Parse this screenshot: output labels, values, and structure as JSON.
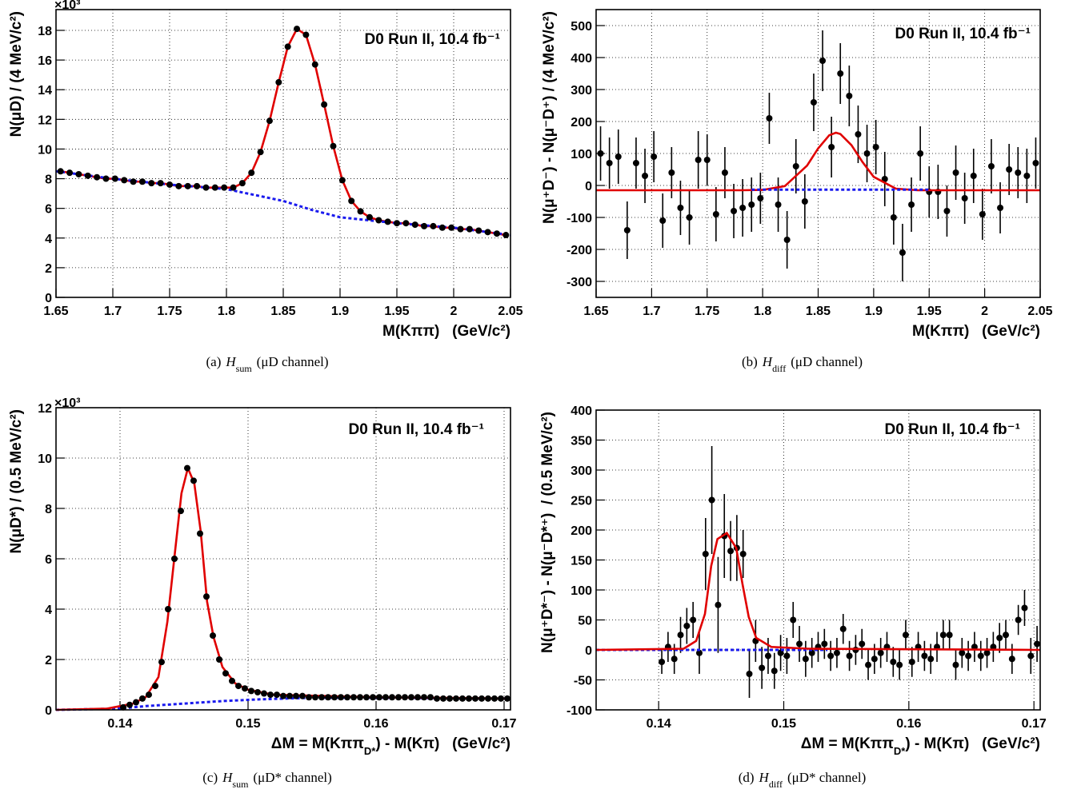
{
  "chart_data": [
    {
      "type": "scatter",
      "grid": true,
      "xlim": [
        1.65,
        2.05
      ],
      "ylim": [
        0,
        19.4
      ],
      "xticks": [
        1.65,
        1.7,
        1.75,
        1.8,
        1.85,
        1.9,
        1.95,
        2,
        2.05
      ],
      "yticks": [
        0,
        2,
        4,
        6,
        8,
        10,
        12,
        14,
        16,
        18
      ],
      "multiplier": "×10³",
      "xlabel": "M(Kππ)   (GeV/c²)",
      "ylabel": "N(μD) / (4 MeV/c²)",
      "annotation": "D0 Run II, 10.4 fb⁻¹",
      "caption": {
        "label": "(a)",
        "symbol": "H",
        "subscript": "sum",
        "text": "(μD channel)"
      },
      "series": [
        {
          "type": "line",
          "color": "#e00000",
          "dash": false,
          "x": [
            1.654,
            1.662,
            1.67,
            1.678,
            1.686,
            1.694,
            1.702,
            1.71,
            1.718,
            1.726,
            1.734,
            1.742,
            1.75,
            1.758,
            1.766,
            1.774,
            1.782,
            1.79,
            1.798,
            1.806,
            1.814,
            1.822,
            1.83,
            1.838,
            1.846,
            1.854,
            1.862,
            1.87,
            1.878,
            1.886,
            1.894,
            1.902,
            1.91,
            1.918,
            1.926,
            1.934,
            1.942,
            1.95,
            1.958,
            1.966,
            1.974,
            1.982,
            1.99,
            1.998,
            2.006,
            2.014,
            2.022,
            2.03,
            2.038,
            2.046
          ],
          "values": [
            8.5,
            8.4,
            8.3,
            8.2,
            8.1,
            8.0,
            8.0,
            7.9,
            7.8,
            7.8,
            7.7,
            7.7,
            7.6,
            7.5,
            7.5,
            7.5,
            7.4,
            7.4,
            7.4,
            7.4,
            7.7,
            8.4,
            9.8,
            11.9,
            14.5,
            16.9,
            18.1,
            17.7,
            15.7,
            13.0,
            10.2,
            7.9,
            6.5,
            5.8,
            5.4,
            5.2,
            5.1,
            5.0,
            5.0,
            4.9,
            4.8,
            4.8,
            4.7,
            4.7,
            4.6,
            4.6,
            4.5,
            4.4,
            4.3,
            4.2
          ]
        },
        {
          "type": "line",
          "color": "#1a1aee",
          "dash": true,
          "x": [
            1.65,
            1.7,
            1.75,
            1.8,
            1.85,
            1.875,
            1.9,
            1.95,
            2.0,
            2.05
          ],
          "values": [
            8.5,
            8.0,
            7.6,
            7.3,
            6.5,
            5.9,
            5.4,
            5.0,
            4.7,
            4.2
          ]
        },
        {
          "type": "scatter",
          "color": "#000000",
          "x": [
            1.654,
            1.662,
            1.67,
            1.678,
            1.686,
            1.694,
            1.702,
            1.71,
            1.718,
            1.726,
            1.734,
            1.742,
            1.75,
            1.758,
            1.766,
            1.774,
            1.782,
            1.79,
            1.798,
            1.806,
            1.814,
            1.822,
            1.83,
            1.838,
            1.846,
            1.854,
            1.862,
            1.87,
            1.878,
            1.886,
            1.894,
            1.902,
            1.91,
            1.918,
            1.926,
            1.934,
            1.942,
            1.95,
            1.958,
            1.966,
            1.974,
            1.982,
            1.99,
            1.998,
            2.006,
            2.014,
            2.022,
            2.03,
            2.038,
            2.046
          ],
          "values": [
            8.5,
            8.4,
            8.3,
            8.2,
            8.1,
            8.0,
            8.0,
            7.9,
            7.8,
            7.8,
            7.7,
            7.7,
            7.6,
            7.5,
            7.5,
            7.5,
            7.4,
            7.4,
            7.4,
            7.4,
            7.7,
            8.4,
            9.8,
            11.9,
            14.5,
            16.9,
            18.1,
            17.7,
            15.7,
            13.0,
            10.2,
            7.9,
            6.5,
            5.8,
            5.4,
            5.2,
            5.1,
            5.0,
            5.0,
            4.9,
            4.8,
            4.8,
            4.7,
            4.7,
            4.6,
            4.6,
            4.5,
            4.4,
            4.3,
            4.2
          ]
        }
      ]
    },
    {
      "type": "scatter",
      "grid": true,
      "xlim": [
        1.65,
        2.05
      ],
      "ylim": [
        -350,
        550
      ],
      "xticks": [
        1.65,
        1.7,
        1.75,
        1.8,
        1.85,
        1.9,
        1.95,
        2,
        2.05
      ],
      "yticks": [
        -300,
        -200,
        -100,
        0,
        100,
        200,
        300,
        400,
        500
      ],
      "xlabel": "M(Kππ)   (GeV/c²)",
      "ylabel": "N(μ⁺D⁻) - N(μ⁻D⁺) / (4 MeV/c²)",
      "annotation": "D0 Run II, 10.4 fb⁻¹",
      "caption": {
        "label": "(b)",
        "symbol": "H",
        "subscript": "diff",
        "text": "(μD channel)"
      },
      "series": [
        {
          "type": "scatter",
          "color": "#000000",
          "x": [
            1.654,
            1.662,
            1.67,
            1.678,
            1.686,
            1.694,
            1.702,
            1.71,
            1.718,
            1.726,
            1.734,
            1.742,
            1.75,
            1.758,
            1.766,
            1.774,
            1.782,
            1.79,
            1.798,
            1.806,
            1.814,
            1.822,
            1.83,
            1.838,
            1.846,
            1.854,
            1.862,
            1.87,
            1.878,
            1.886,
            1.894,
            1.902,
            1.91,
            1.918,
            1.926,
            1.934,
            1.942,
            1.95,
            1.958,
            1.966,
            1.974,
            1.982,
            1.99,
            1.998,
            2.006,
            2.014,
            2.022,
            2.03,
            2.038,
            2.046
          ],
          "values": [
            100,
            70,
            90,
            -140,
            70,
            30,
            90,
            -110,
            40,
            -70,
            -100,
            80,
            80,
            -90,
            40,
            -80,
            -70,
            -60,
            -40,
            210,
            -60,
            -170,
            60,
            -50,
            260,
            390,
            120,
            350,
            280,
            160,
            100,
            120,
            20,
            -100,
            -210,
            -60,
            100,
            -20,
            -20,
            -80,
            40,
            -40,
            30,
            -90,
            60,
            -70,
            50,
            40,
            30,
            70
          ],
          "errors": [
            85,
            80,
            85,
            90,
            80,
            85,
            80,
            85,
            80,
            85,
            85,
            90,
            80,
            85,
            80,
            85,
            90,
            85,
            80,
            80,
            85,
            90,
            85,
            85,
            90,
            95,
            95,
            95,
            95,
            90,
            90,
            85,
            85,
            85,
            90,
            85,
            85,
            80,
            85,
            80,
            85,
            80,
            85,
            80,
            85,
            80,
            80,
            80,
            85,
            80
          ]
        },
        {
          "type": "line",
          "color": "#e00000",
          "dash": false,
          "x": [
            1.65,
            1.78,
            1.8,
            1.82,
            1.84,
            1.85,
            1.86,
            1.866,
            1.87,
            1.88,
            1.89,
            1.9,
            1.92,
            1.94,
            2.05
          ],
          "values": [
            -15,
            -15,
            -14,
            -2,
            62,
            116,
            157,
            165,
            161,
            126,
            73,
            27,
            -10,
            -15,
            -15
          ]
        },
        {
          "type": "line",
          "color": "#1a1aee",
          "dash": true,
          "x": [
            1.79,
            1.95
          ],
          "values": [
            -13,
            -13
          ]
        }
      ]
    },
    {
      "type": "scatter",
      "grid": true,
      "xlim": [
        0.135,
        0.1705
      ],
      "ylim": [
        0,
        12
      ],
      "xticks": [
        0.14,
        0.15,
        0.16,
        0.17
      ],
      "yticks": [
        0,
        2,
        4,
        6,
        8,
        10,
        12
      ],
      "multiplier": "×10³",
      "xlabel": [
        "ΔM = M(Kππ",
        "D*",
        ") - M(Kπ)   (GeV/c²)"
      ],
      "ylabel": "N(μD*) / (0.5 MeV/c²)",
      "annotation": "D0 Run II, 10.4 fb⁻¹",
      "caption": {
        "label": "(c)",
        "symbol": "H",
        "subscript": "sum",
        "text": "(μD* channel)"
      },
      "series": [
        {
          "type": "line",
          "color": "#1a1aee",
          "dash": true,
          "x": [
            0.135,
            0.14,
            0.142,
            0.145,
            0.148,
            0.151,
            0.155,
            0.16,
            0.1705
          ],
          "values": [
            0,
            0.05,
            0.15,
            0.25,
            0.35,
            0.42,
            0.48,
            0.48,
            0.45
          ]
        },
        {
          "type": "line",
          "color": "#e00000",
          "dash": false,
          "x": [
            0.135,
            0.139,
            0.141,
            0.142,
            0.143,
            0.1437,
            0.1443,
            0.1448,
            0.1453,
            0.1458,
            0.1463,
            0.1468,
            0.1473,
            0.148,
            0.149,
            0.15,
            0.152,
            0.16,
            0.1705
          ],
          "values": [
            0,
            0.05,
            0.25,
            0.5,
            1.3,
            3.5,
            6.3,
            8.6,
            9.6,
            9.0,
            7.1,
            4.3,
            2.9,
            1.7,
            1.05,
            0.8,
            0.6,
            0.5,
            0.45
          ]
        },
        {
          "type": "scatter",
          "color": "#000000",
          "x": [
            0.14025,
            0.14075,
            0.14125,
            0.14175,
            0.14225,
            0.14275,
            0.14325,
            0.14375,
            0.14425,
            0.14475,
            0.14525,
            0.14575,
            0.14625,
            0.14675,
            0.14725,
            0.14775,
            0.14825,
            0.14875,
            0.14925,
            0.14975,
            0.15025,
            0.15075,
            0.15125,
            0.15175,
            0.15225,
            0.15275,
            0.15325,
            0.15375,
            0.15425,
            0.15475,
            0.15525,
            0.15575,
            0.15625,
            0.15675,
            0.15725,
            0.15775,
            0.15825,
            0.15875,
            0.15925,
            0.15975,
            0.16025,
            0.16075,
            0.16125,
            0.16175,
            0.16225,
            0.16275,
            0.16325,
            0.16375,
            0.16425,
            0.16475,
            0.16525,
            0.16575,
            0.16625,
            0.16675,
            0.16725,
            0.16775,
            0.16825,
            0.16875,
            0.16925,
            0.16975,
            0.17025
          ],
          "values": [
            0.1,
            0.2,
            0.3,
            0.45,
            0.6,
            0.95,
            1.9,
            4.0,
            6.0,
            7.9,
            9.6,
            9.1,
            7.0,
            4.5,
            2.95,
            2.0,
            1.45,
            1.15,
            0.95,
            0.85,
            0.75,
            0.7,
            0.65,
            0.6,
            0.6,
            0.55,
            0.55,
            0.55,
            0.55,
            0.5,
            0.5,
            0.5,
            0.5,
            0.5,
            0.5,
            0.5,
            0.5,
            0.5,
            0.5,
            0.5,
            0.5,
            0.5,
            0.5,
            0.5,
            0.5,
            0.5,
            0.5,
            0.5,
            0.5,
            0.45,
            0.45,
            0.45,
            0.45,
            0.45,
            0.45,
            0.45,
            0.45,
            0.45,
            0.45,
            0.45,
            0.45
          ]
        }
      ]
    },
    {
      "type": "scatter",
      "grid": true,
      "xlim": [
        0.135,
        0.1705
      ],
      "ylim": [
        -100,
        400
      ],
      "xticks": [
        0.14,
        0.15,
        0.16,
        0.17
      ],
      "yticks": [
        -100,
        -50,
        0,
        50,
        100,
        150,
        200,
        250,
        300,
        350,
        400
      ],
      "xlabel": [
        "ΔM = M(Kππ",
        "D*",
        ") - M(Kπ)   (GeV/c²)"
      ],
      "ylabel": "N(μ⁺D*⁻) - N(μ⁻D*⁺)  / (0.5 MeV/c²)",
      "annotation": "D0 Run II, 10.4 fb⁻¹",
      "caption": {
        "label": "(d)",
        "symbol": "H",
        "subscript": "diff",
        "text": "(μD* channel)"
      },
      "series": [
        {
          "type": "scatter",
          "color": "#000000",
          "x": [
            0.14025,
            0.14075,
            0.14125,
            0.14175,
            0.14225,
            0.14275,
            0.14325,
            0.14375,
            0.14425,
            0.14475,
            0.14525,
            0.14575,
            0.14625,
            0.14675,
            0.14725,
            0.14775,
            0.14825,
            0.14875,
            0.14925,
            0.14975,
            0.15025,
            0.15075,
            0.15125,
            0.15175,
            0.15225,
            0.15275,
            0.15325,
            0.15375,
            0.15425,
            0.15475,
            0.15525,
            0.15575,
            0.15625,
            0.15675,
            0.15725,
            0.15775,
            0.15825,
            0.15875,
            0.15925,
            0.15975,
            0.16025,
            0.16075,
            0.16125,
            0.16175,
            0.16225,
            0.16275,
            0.16325,
            0.16375,
            0.16425,
            0.16475,
            0.16525,
            0.16575,
            0.16625,
            0.16675,
            0.16725,
            0.16775,
            0.16825,
            0.16875,
            0.16925,
            0.16975,
            0.17025
          ],
          "values": [
            -20,
            5,
            -15,
            25,
            40,
            50,
            -5,
            160,
            250,
            75,
            190,
            165,
            170,
            160,
            -40,
            15,
            -30,
            -10,
            -35,
            -5,
            -10,
            50,
            10,
            -15,
            -5,
            5,
            10,
            -10,
            -5,
            35,
            -10,
            0,
            10,
            -25,
            -15,
            -5,
            5,
            -20,
            -25,
            25,
            -20,
            5,
            -10,
            -15,
            5,
            25,
            25,
            -25,
            -5,
            -10,
            5,
            -10,
            -5,
            5,
            20,
            25,
            -15,
            50,
            70,
            -10,
            10
          ],
          "errors": [
            20,
            25,
            25,
            30,
            30,
            30,
            35,
            60,
            90,
            80,
            70,
            50,
            55,
            40,
            40,
            35,
            35,
            30,
            30,
            30,
            30,
            30,
            30,
            30,
            25,
            25,
            25,
            25,
            25,
            25,
            25,
            25,
            25,
            25,
            25,
            25,
            25,
            25,
            25,
            25,
            25,
            25,
            25,
            25,
            25,
            25,
            25,
            25,
            25,
            25,
            25,
            25,
            25,
            25,
            25,
            25,
            25,
            25,
            30,
            30,
            30
          ]
        },
        {
          "type": "line",
          "color": "#1a1aee",
          "dash": true,
          "x": [
            0.135,
            0.1535
          ],
          "values": [
            0,
            0
          ]
        },
        {
          "type": "line",
          "color": "#e00000",
          "dash": false,
          "x": [
            0.135,
            0.142,
            0.143,
            0.1437,
            0.1442,
            0.1447,
            0.14545,
            0.1462,
            0.1467,
            0.1472,
            0.1478,
            0.149,
            0.152,
            0.1705
          ],
          "values": [
            0,
            2,
            15,
            60,
            140,
            185,
            195,
            170,
            110,
            55,
            20,
            5,
            2,
            0
          ]
        }
      ]
    }
  ]
}
